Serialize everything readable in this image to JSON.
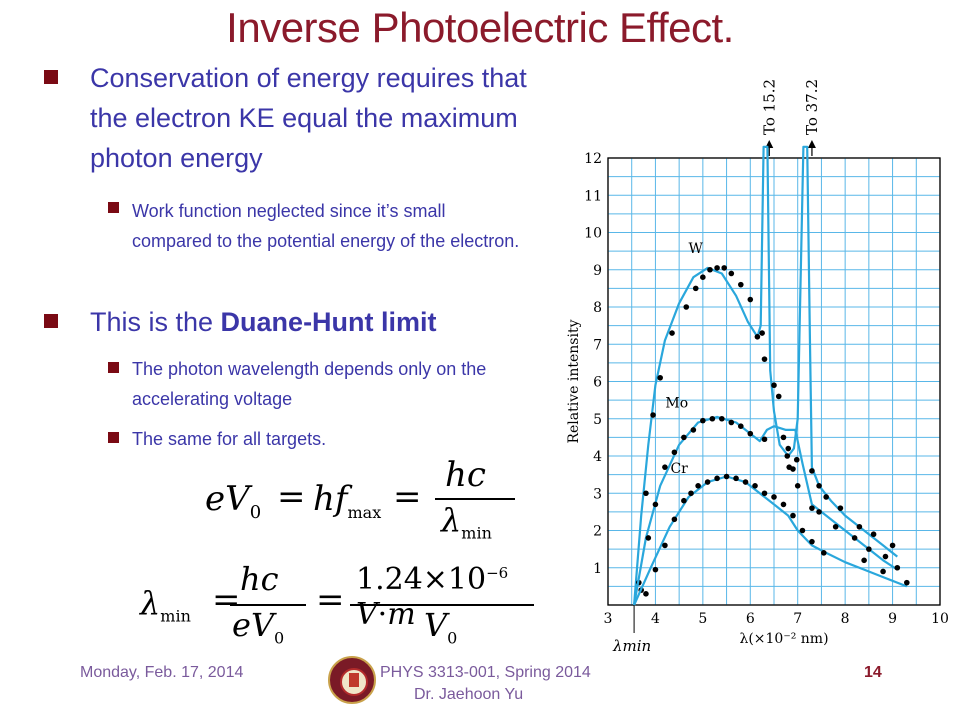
{
  "slide": {
    "title": "Inverse Photoelectric Effect.",
    "bullets": {
      "b1": "Conservation of energy requires that the electron KE equal the maximum photon energy",
      "b1_sub1": "Work function neglected since it’s small compared to the potential energy of the electron.",
      "b2_prefix": "This is the ",
      "b2_bold": "Duane-Hunt limit",
      "b2_sub1": "The photon wavelength depends only on the accelerating voltage",
      "b2_sub2": "The same for all targets."
    },
    "equations": {
      "eq1": "eV0 = hfmax = hc / λmin",
      "eq2": "λmin = hc / eV0 = 1.24 × 10^-6 V·m / V0"
    },
    "footer": {
      "date": "Monday, Feb. 17, 2014",
      "course": "PHYS 3313-001, Spring 2014",
      "instructor": "Dr. Jaehoon Yu",
      "page": "14"
    }
  },
  "chart_data": {
    "type": "line",
    "xlabel": "λ(×10⁻² nm)",
    "ylabel": "Relative intensity",
    "xlim": [
      3,
      10
    ],
    "ylim": [
      0,
      12
    ],
    "x_ticks": [
      "3",
      "4",
      "5",
      "6",
      "7",
      "8",
      "9",
      "10"
    ],
    "y_ticks": [
      "1",
      "2",
      "3",
      "4",
      "5",
      "6",
      "7",
      "8",
      "9",
      "10",
      "11",
      "12"
    ],
    "lambda_min_label": "λmin",
    "lambda_min": 3.55,
    "grid": true,
    "line_color": "#2aa7dc",
    "grid_color": "#59b7e8",
    "point_color": "#000000",
    "annotations": [
      {
        "text": "To 15.2",
        "x": 6.4
      },
      {
        "text": "To 37.2",
        "x": 7.3
      }
    ],
    "series": [
      {
        "name": "W",
        "curve": [
          [
            3.55,
            0
          ],
          [
            3.7,
            2.4
          ],
          [
            3.85,
            4.3
          ],
          [
            4.0,
            5.9
          ],
          [
            4.2,
            7.1
          ],
          [
            4.5,
            8.1
          ],
          [
            4.8,
            8.8
          ],
          [
            5.1,
            9.05
          ],
          [
            5.4,
            8.9
          ],
          [
            5.7,
            8.3
          ],
          [
            5.95,
            7.6
          ],
          [
            6.15,
            7.2
          ],
          [
            6.22,
            7.5
          ],
          [
            6.28,
            12.3
          ],
          [
            6.36,
            12.3
          ],
          [
            6.42,
            6.3
          ],
          [
            6.5,
            5.2
          ],
          [
            6.62,
            4.3
          ],
          [
            6.8,
            4.0
          ],
          [
            6.92,
            4.2
          ],
          [
            7.0,
            5.0
          ],
          [
            7.12,
            12.3
          ],
          [
            7.2,
            12.3
          ],
          [
            7.26,
            7.0
          ],
          [
            7.3,
            3.7
          ],
          [
            7.45,
            3.2
          ],
          [
            7.7,
            2.8
          ],
          [
            8.0,
            2.4
          ],
          [
            8.4,
            2.0
          ],
          [
            8.8,
            1.6
          ],
          [
            9.1,
            1.3
          ]
        ],
        "points": [
          [
            3.65,
            0.6
          ],
          [
            3.8,
            3.0
          ],
          [
            3.95,
            5.1
          ],
          [
            4.1,
            6.1
          ],
          [
            4.35,
            7.3
          ],
          [
            4.65,
            8.0
          ],
          [
            4.85,
            8.5
          ],
          [
            5.0,
            8.8
          ],
          [
            5.15,
            9.0
          ],
          [
            5.3,
            9.05
          ],
          [
            5.45,
            9.05
          ],
          [
            5.6,
            8.9
          ],
          [
            5.8,
            8.6
          ],
          [
            6.0,
            8.2
          ],
          [
            6.15,
            7.2
          ],
          [
            6.25,
            7.3
          ],
          [
            6.3,
            6.6
          ],
          [
            6.5,
            5.9
          ],
          [
            6.6,
            5.6
          ],
          [
            6.7,
            4.5
          ],
          [
            6.78,
            4.0
          ],
          [
            6.82,
            3.7
          ],
          [
            6.9,
            3.65
          ],
          [
            6.98,
            3.9
          ],
          [
            7.3,
            3.6
          ],
          [
            7.45,
            3.2
          ],
          [
            7.6,
            2.9
          ],
          [
            7.9,
            2.6
          ],
          [
            8.3,
            2.1
          ],
          [
            8.6,
            1.9
          ],
          [
            9.0,
            1.6
          ]
        ]
      },
      {
        "name": "Mo",
        "curve": [
          [
            3.55,
            0
          ],
          [
            3.8,
            1.8
          ],
          [
            4.1,
            3.2
          ],
          [
            4.5,
            4.3
          ],
          [
            4.9,
            4.9
          ],
          [
            5.3,
            5.05
          ],
          [
            5.7,
            4.9
          ],
          [
            6.0,
            4.6
          ],
          [
            6.2,
            4.4
          ],
          [
            6.35,
            4.7
          ],
          [
            6.5,
            4.8
          ],
          [
            6.75,
            4.7
          ],
          [
            6.95,
            4.7
          ],
          [
            7.1,
            3.8
          ],
          [
            7.3,
            2.7
          ],
          [
            7.6,
            2.4
          ],
          [
            8.0,
            2.0
          ],
          [
            8.4,
            1.6
          ],
          [
            8.8,
            1.2
          ],
          [
            9.1,
            0.95
          ]
        ],
        "points": [
          [
            3.7,
            0.4
          ],
          [
            3.85,
            1.8
          ],
          [
            4.0,
            2.7
          ],
          [
            4.2,
            3.7
          ],
          [
            4.4,
            4.1
          ],
          [
            4.6,
            4.5
          ],
          [
            4.8,
            4.7
          ],
          [
            5.0,
            4.95
          ],
          [
            5.2,
            5.0
          ],
          [
            5.4,
            5.0
          ],
          [
            5.6,
            4.9
          ],
          [
            5.8,
            4.8
          ],
          [
            6.0,
            4.6
          ],
          [
            6.3,
            4.45
          ],
          [
            6.8,
            4.2
          ],
          [
            7.0,
            3.2
          ],
          [
            7.3,
            2.6
          ],
          [
            7.45,
            2.5
          ],
          [
            7.8,
            2.1
          ],
          [
            8.2,
            1.8
          ],
          [
            8.5,
            1.5
          ],
          [
            8.85,
            1.3
          ],
          [
            9.1,
            1.0
          ]
        ]
      },
      {
        "name": "Cr",
        "curve": [
          [
            3.55,
            0
          ],
          [
            3.9,
            1.0
          ],
          [
            4.3,
            2.1
          ],
          [
            4.7,
            2.9
          ],
          [
            5.1,
            3.3
          ],
          [
            5.5,
            3.45
          ],
          [
            5.9,
            3.3
          ],
          [
            6.2,
            3.0
          ],
          [
            6.5,
            2.7
          ],
          [
            6.8,
            2.4
          ],
          [
            7.0,
            2.0
          ],
          [
            7.3,
            1.6
          ],
          [
            7.6,
            1.4
          ],
          [
            8.0,
            1.15
          ],
          [
            8.4,
            0.95
          ],
          [
            8.8,
            0.75
          ],
          [
            9.3,
            0.5
          ]
        ],
        "points": [
          [
            3.8,
            0.3
          ],
          [
            4.0,
            0.95
          ],
          [
            4.2,
            1.6
          ],
          [
            4.4,
            2.3
          ],
          [
            4.6,
            2.8
          ],
          [
            4.75,
            3.0
          ],
          [
            4.9,
            3.2
          ],
          [
            5.1,
            3.3
          ],
          [
            5.3,
            3.4
          ],
          [
            5.5,
            3.45
          ],
          [
            5.7,
            3.4
          ],
          [
            5.9,
            3.3
          ],
          [
            6.1,
            3.2
          ],
          [
            6.3,
            3.0
          ],
          [
            6.5,
            2.9
          ],
          [
            6.7,
            2.7
          ],
          [
            6.9,
            2.4
          ],
          [
            7.1,
            2.0
          ],
          [
            7.3,
            1.7
          ],
          [
            7.55,
            1.4
          ],
          [
            8.4,
            1.2
          ],
          [
            8.8,
            0.9
          ],
          [
            9.3,
            0.6
          ]
        ]
      }
    ]
  }
}
